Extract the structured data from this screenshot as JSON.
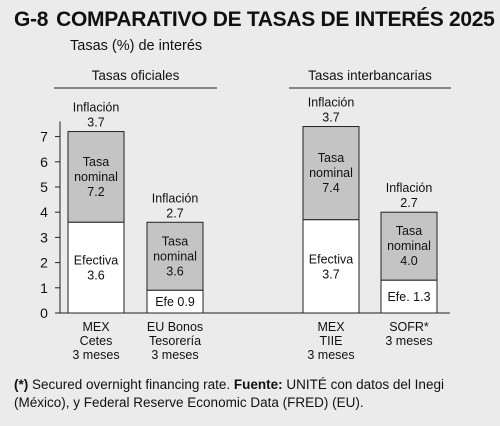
{
  "header": {
    "code": "G-8",
    "title": "COMPARATIVO DE TASAS DE INTERÉS 2025",
    "subtitle": "Tasas (%) de interés"
  },
  "footnote": {
    "marker": "(*)",
    "text1": " Secured overnight financing rate. ",
    "source_label": "Fuente:",
    "text2": " UNITÉ con datos del Inegi (México), y Federal Reserve Economic Data (FRED) (EU)."
  },
  "colors": {
    "background": "#ebebeb",
    "efectiva": "#ffffff",
    "nominal": "#c4c4c4",
    "inflacion": "#ebebeb",
    "border": "#222222"
  },
  "chart_data": {
    "type": "bar",
    "stacked": true,
    "ylim": [
      0,
      8
    ],
    "yticks": [
      0,
      1,
      2,
      3,
      4,
      5,
      6,
      7
    ],
    "groups": [
      {
        "label": "Tasas oficiales",
        "members": [
          0,
          1
        ]
      },
      {
        "label": "Tasas interbancarias",
        "members": [
          2,
          3
        ]
      }
    ],
    "bars": [
      {
        "category_lines": [
          "MEX",
          "Cetes",
          "3 meses"
        ],
        "efectiva": 3.6,
        "efectiva_label": "Efectiva",
        "efectiva_value": "3.6",
        "nominal": 7.2,
        "nominal_lines": [
          "Tasa",
          "nominal"
        ],
        "nominal_value": "7.2",
        "inflacion_label": "Inflación",
        "inflacion_value": "3.7"
      },
      {
        "category_lines": [
          "EU Bonos",
          "Tesorería",
          "3 meses"
        ],
        "efectiva": 0.9,
        "efectiva_label": "Efe 0.9",
        "efectiva_value": "",
        "nominal": 3.6,
        "nominal_lines": [
          "Tasa",
          "nominal"
        ],
        "nominal_value": "3.6",
        "inflacion_label": "Inflación",
        "inflacion_value": "2.7"
      },
      {
        "category_lines": [
          "MEX",
          "TIIE",
          "3 meses"
        ],
        "efectiva": 3.7,
        "efectiva_label": "Efectiva",
        "efectiva_value": "3.7",
        "nominal": 7.4,
        "nominal_lines": [
          "Tasa",
          "nominal"
        ],
        "nominal_value": "7.4",
        "inflacion_label": "Inflación",
        "inflacion_value": "3.7"
      },
      {
        "category_lines": [
          "SOFR*",
          "3 meses"
        ],
        "efectiva": 1.3,
        "efectiva_label": "Efe. 1.3",
        "efectiva_value": "",
        "nominal": 4.0,
        "nominal_lines": [
          "Tasa",
          "nominal"
        ],
        "nominal_value": "4.0",
        "inflacion_label": "Inflación",
        "inflacion_value": "2.7"
      }
    ]
  }
}
